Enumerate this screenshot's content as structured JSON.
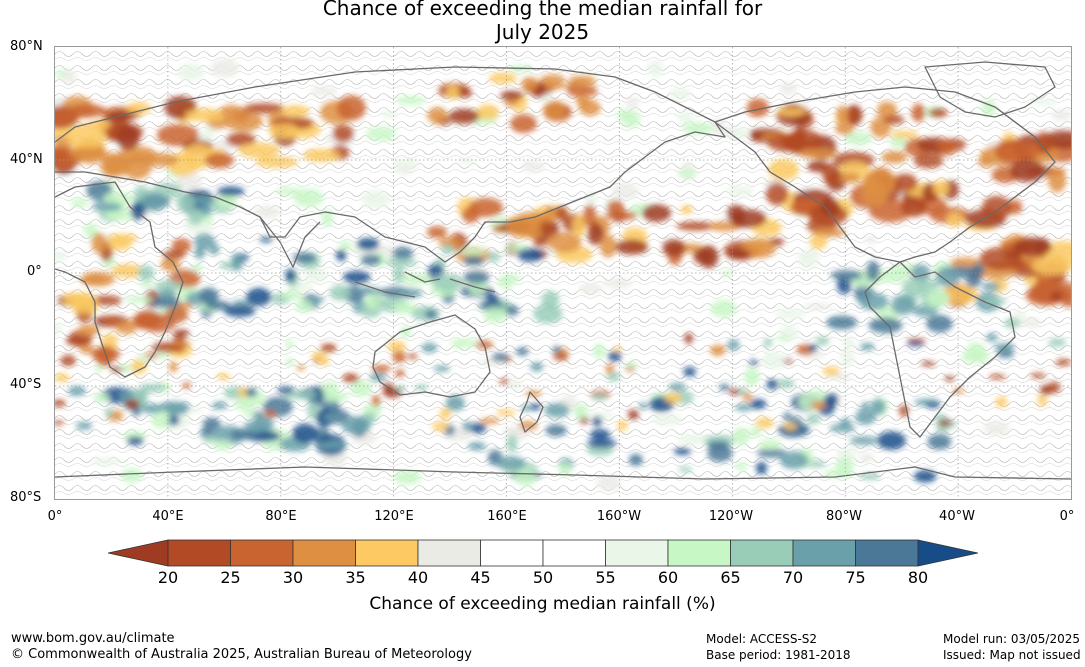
{
  "header": {
    "title_line1": "Chance of exceeding the median rainfall for",
    "title_line2": "July 2025"
  },
  "map": {
    "lat_labels": [
      "80°N",
      "40°N",
      "0°",
      "40°S",
      "80°S"
    ],
    "lon_labels": [
      "0°",
      "40°E",
      "80°E",
      "120°E",
      "160°E",
      "160°W",
      "120°W",
      "80°W",
      "40°W",
      "0°"
    ],
    "land_outline_color": "#6a6a6a",
    "grid_color": "#9a9a9a"
  },
  "legend": {
    "ticks": [
      "20",
      "25",
      "30",
      "35",
      "40",
      "45",
      "50",
      "55",
      "60",
      "65",
      "70",
      "75",
      "80"
    ],
    "colors": [
      "#9e3b22",
      "#b14a25",
      "#c96330",
      "#de8f42",
      "#fcc962",
      "#ebebe6",
      "#ffffff",
      "#ffffff",
      "#e9f6e8",
      "#c8f7c6",
      "#99cdb8",
      "#6aa0aa",
      "#4b7897",
      "#164d88"
    ],
    "label": "Chance of exceeding median rainfall (%)"
  },
  "footer": {
    "website": "www.bom.gov.au/climate",
    "copyright": "© Commonwealth of Australia 2025, Australian Bureau of Meteorology",
    "model": "Model: ACCESS-S2",
    "base_period": "Base period: 1981-2018",
    "model_run": "Model run: 03/05/2025",
    "issued": "Issued: Map not issued"
  }
}
